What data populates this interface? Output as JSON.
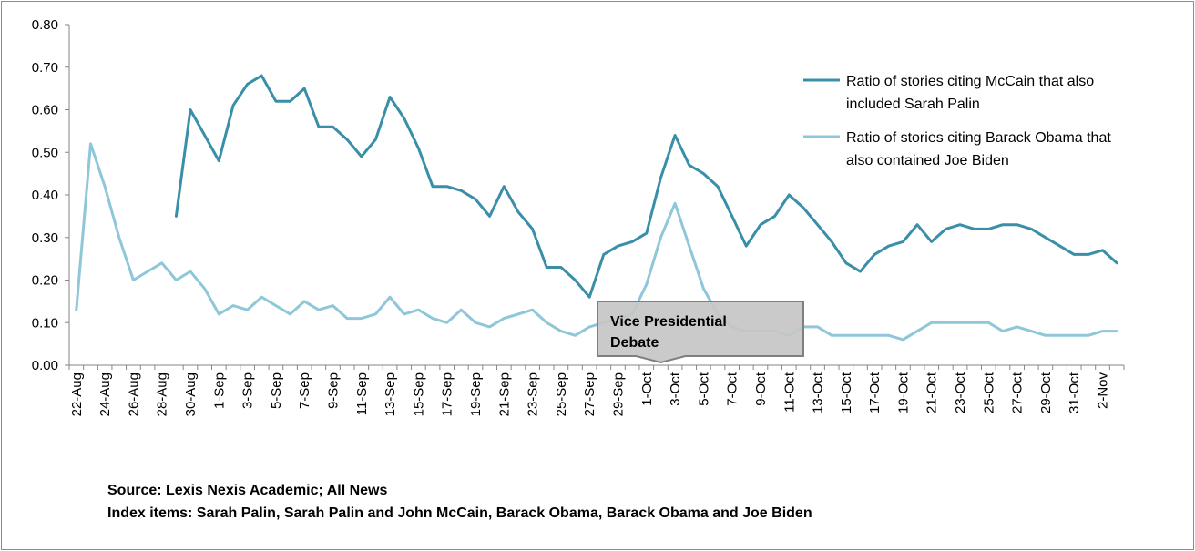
{
  "chart_data": {
    "type": "line",
    "title": "",
    "xlabel": "",
    "ylabel": "",
    "ylim": [
      0,
      0.8
    ],
    "yticks": [
      "0.00",
      "0.10",
      "0.20",
      "0.30",
      "0.40",
      "0.50",
      "0.60",
      "0.70",
      "0.80"
    ],
    "x": [
      "22-Aug",
      "23-Aug",
      "24-Aug",
      "25-Aug",
      "26-Aug",
      "27-Aug",
      "28-Aug",
      "29-Aug",
      "30-Aug",
      "31-Aug",
      "1-Sep",
      "2-Sep",
      "3-Sep",
      "4-Sep",
      "5-Sep",
      "6-Sep",
      "7-Sep",
      "8-Sep",
      "9-Sep",
      "10-Sep",
      "11-Sep",
      "12-Sep",
      "13-Sep",
      "14-Sep",
      "15-Sep",
      "16-Sep",
      "17-Sep",
      "18-Sep",
      "19-Sep",
      "20-Sep",
      "21-Sep",
      "22-Sep",
      "23-Sep",
      "24-Sep",
      "25-Sep",
      "26-Sep",
      "27-Sep",
      "28-Sep",
      "29-Sep",
      "30-Sep",
      "1-Oct",
      "2-Oct",
      "3-Oct",
      "4-Oct",
      "5-Oct",
      "6-Oct",
      "7-Oct",
      "8-Oct",
      "9-Oct",
      "10-Oct",
      "11-Oct",
      "12-Oct",
      "13-Oct",
      "14-Oct",
      "15-Oct",
      "16-Oct",
      "17-Oct",
      "18-Oct",
      "19-Oct",
      "20-Oct",
      "21-Oct",
      "22-Oct",
      "23-Oct",
      "24-Oct",
      "25-Oct",
      "26-Oct",
      "27-Oct",
      "28-Oct",
      "29-Oct",
      "30-Oct",
      "31-Oct",
      "1-Nov",
      "2-Nov",
      "3-Nov"
    ],
    "xtick_labels": [
      "22-Aug",
      "24-Aug",
      "26-Aug",
      "28-Aug",
      "30-Aug",
      "1-Sep",
      "3-Sep",
      "5-Sep",
      "7-Sep",
      "9-Sep",
      "11-Sep",
      "13-Sep",
      "15-Sep",
      "17-Sep",
      "19-Sep",
      "21-Sep",
      "23-Sep",
      "25-Sep",
      "27-Sep",
      "29-Sep",
      "1-Oct",
      "3-Oct",
      "5-Oct",
      "7-Oct",
      "9-Oct",
      "11-Oct",
      "13-Oct",
      "15-Oct",
      "17-Oct",
      "19-Oct",
      "21-Oct",
      "23-Oct",
      "25-Oct",
      "27-Oct",
      "29-Oct",
      "31-Oct",
      "2-Nov"
    ],
    "series": [
      {
        "name": "Ratio of stories citing McCain that also included Sarah Palin",
        "legend_lines": [
          "Ratio of stories citing McCain that also",
          "included Sarah Palin"
        ],
        "color": "#3a8fa8",
        "values": [
          null,
          null,
          null,
          null,
          null,
          null,
          null,
          0.35,
          0.6,
          0.54,
          0.48,
          0.61,
          0.66,
          0.68,
          0.62,
          0.62,
          0.65,
          0.56,
          0.56,
          0.53,
          0.49,
          0.53,
          0.63,
          0.58,
          0.51,
          0.42,
          0.42,
          0.41,
          0.39,
          0.35,
          0.42,
          0.36,
          0.32,
          0.23,
          0.23,
          0.2,
          0.16,
          0.26,
          0.28,
          0.29,
          0.31,
          0.44,
          0.54,
          0.47,
          0.45,
          0.42,
          0.35,
          0.28,
          0.33,
          0.35,
          0.4,
          0.37,
          0.33,
          0.29,
          0.24,
          0.22,
          0.26,
          0.28,
          0.29,
          0.33,
          0.29,
          0.32,
          0.33,
          0.32,
          0.32,
          0.33,
          0.33,
          0.32,
          0.3,
          0.28,
          0.26,
          0.26,
          0.27,
          0.24
        ]
      },
      {
        "name": "Ratio of stories citing Barack Obama that also contained Joe Biden",
        "legend_lines": [
          "Ratio of stories citing Barack Obama that",
          "also contained Joe Biden"
        ],
        "color": "#8ec7d9",
        "values": [
          0.13,
          0.52,
          0.42,
          0.3,
          0.2,
          0.22,
          0.24,
          0.2,
          0.22,
          0.18,
          0.12,
          0.14,
          0.13,
          0.16,
          0.14,
          0.12,
          0.15,
          0.13,
          0.14,
          0.11,
          0.11,
          0.12,
          0.16,
          0.12,
          0.13,
          0.11,
          0.1,
          0.13,
          0.1,
          0.09,
          0.11,
          0.12,
          0.13,
          0.1,
          0.08,
          0.07,
          0.09,
          0.1,
          0.11,
          0.12,
          0.19,
          0.3,
          0.38,
          0.28,
          0.18,
          0.12,
          0.09,
          0.08,
          0.08,
          0.08,
          0.07,
          0.09,
          0.09,
          0.07,
          0.07,
          0.07,
          0.07,
          0.07,
          0.06,
          0.08,
          0.1,
          0.1,
          0.1,
          0.1,
          0.1,
          0.08,
          0.09,
          0.08,
          0.07,
          0.07,
          0.07,
          0.07,
          0.08,
          0.08
        ]
      }
    ],
    "legend_position": "top-right",
    "annotations": [
      {
        "text_lines": [
          "Vice Presidential",
          "Debate"
        ],
        "points_to": "2-Oct"
      }
    ]
  },
  "source_line": "Source: Lexis Nexis Academic; All News",
  "index_line": "Index items: Sarah Palin, Sarah Palin and John McCain, Barack Obama, Barack Obama and Joe Biden"
}
